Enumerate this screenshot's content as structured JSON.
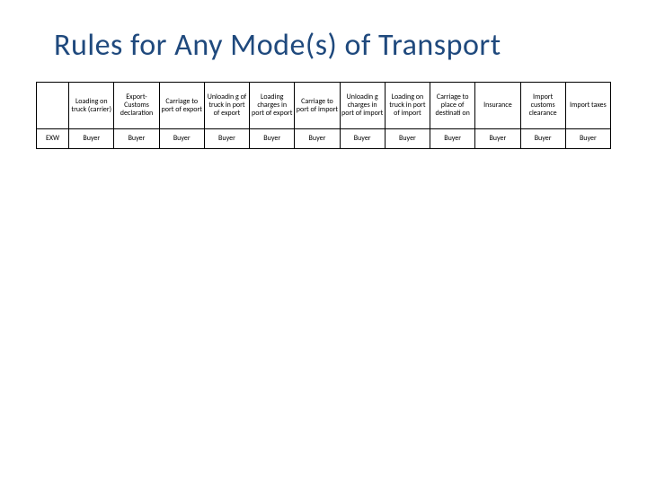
{
  "title": "Rules for Any Mode(s) of Transport",
  "table": {
    "type": "table",
    "columns": [
      "",
      "Loading on truck (carrier)",
      "Export-Customs declaration",
      "Carriage to port of export",
      "Unloadin g of truck in port of export",
      "Loading charges in port of export",
      "Carriage to port of import",
      "Unloadin g charges in port of import",
      "Loading on truck in port of import",
      "Carriage to place of destinati on",
      "Insurance",
      "Import customs clearance",
      "Import taxes"
    ],
    "rows": [
      [
        "EXW",
        "Buyer",
        "Buyer",
        "Buyer",
        "Buyer",
        "Buyer",
        "Buyer",
        "Buyer",
        "Buyer",
        "Buyer",
        "Buyer",
        "Buyer",
        "Buyer"
      ]
    ],
    "border_color": "#000000",
    "background_color": "#ffffff",
    "header_fontsize": 8,
    "cell_fontsize": 8
  },
  "title_color": "#1f497d",
  "title_fontsize": 34
}
